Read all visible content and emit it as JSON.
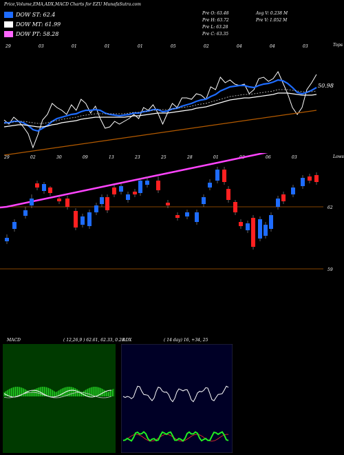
{
  "header": {
    "title": "Price,Volume,EMA,ADX,MACD Charts for EZU MunafaSutra.com",
    "stats_left": [
      "Pre  O: 63.48",
      "Pre  H: 63.72",
      "Pre  L: 63.28",
      "Pre  C: 63.35"
    ],
    "stats_right": [
      "Avg V: 0.238  M",
      "Pre  V: 1.052  M"
    ]
  },
  "legend": [
    {
      "label": "DOW ST: 62.4",
      "color": "#1e6cff"
    },
    {
      "label": "DOW MT: 61.99",
      "color": "#ffffff"
    },
    {
      "label": "DOW PT: 58.28",
      "color": "#ff66ff"
    }
  ],
  "chart_data": [
    {
      "type": "line",
      "name": "price_ema_panel",
      "right_labels": [
        "Tops",
        "50.98"
      ],
      "top_date_labels": [
        "29",
        "03",
        "01",
        "01",
        "01",
        "05",
        "02",
        "04",
        "04",
        "03"
      ],
      "series": [
        {
          "name": "close",
          "color": "#ffffff",
          "values": [
            174,
            180,
            170,
            176,
            184,
            194,
            214,
            196,
            174,
            166,
            150,
            156,
            160,
            166,
            152,
            160,
            144,
            150,
            164,
            154,
            172,
            186,
            184,
            176,
            180,
            176,
            172,
            166,
            172,
            156,
            160,
            152,
            164,
            180,
            164,
            150,
            156,
            142,
            142,
            144,
            136,
            138,
            144,
            126,
            130,
            112,
            120,
            116,
            122,
            124,
            122,
            136,
            130,
            114,
            112,
            118,
            114,
            104,
            120,
            136,
            156,
            166,
            156,
            130,
            120,
            108
          ]
        },
        {
          "name": "ema_short",
          "color": "#1e6cff",
          "values": [
            178,
            178,
            176,
            176,
            178,
            182,
            188,
            190,
            186,
            182,
            176,
            172,
            170,
            168,
            166,
            165,
            162,
            160,
            160,
            159,
            160,
            164,
            166,
            167,
            168,
            167,
            166,
            164,
            164,
            162,
            161,
            159,
            159,
            162,
            161,
            158,
            157,
            154,
            152,
            150,
            147,
            145,
            144,
            140,
            137,
            132,
            129,
            126,
            125,
            124,
            124,
            126,
            127,
            124,
            122,
            121,
            119,
            116,
            117,
            121,
            127,
            134,
            136,
            134,
            131,
            127
          ]
        },
        {
          "name": "ema_mid",
          "color": "#ffffff",
          "values": [
            184,
            183,
            182,
            181,
            181,
            182,
            183,
            184,
            184,
            183,
            181,
            180,
            178,
            177,
            176,
            175,
            173,
            172,
            171,
            170,
            170,
            170,
            170,
            170,
            170,
            170,
            169,
            168,
            168,
            167,
            166,
            165,
            164,
            164,
            164,
            163,
            162,
            161,
            160,
            159,
            157,
            156,
            155,
            153,
            151,
            149,
            147,
            145,
            144,
            143,
            142,
            142,
            141,
            140,
            139,
            138,
            137,
            135,
            135,
            135,
            136,
            137,
            138,
            138,
            138,
            137
          ]
        },
        {
          "name": "ema_long",
          "color": "#b35a00",
          "values": [
            225,
            224,
            223,
            222,
            221,
            220,
            219,
            218,
            217,
            216,
            215,
            214,
            213,
            212,
            211,
            210,
            209,
            208,
            207,
            206,
            205,
            204,
            203,
            202,
            201,
            200,
            199,
            198,
            197,
            196,
            195,
            194,
            193,
            192,
            191,
            190,
            189,
            188,
            187,
            186,
            185,
            184,
            183,
            182,
            181,
            180,
            179,
            178,
            177,
            176,
            175,
            174,
            173,
            172,
            171,
            170,
            169,
            168,
            167,
            166,
            165,
            164,
            163,
            162,
            161,
            160
          ]
        }
      ]
    },
    {
      "type": "bar",
      "name": "candlestick_panel",
      "right_labels": [
        "Lows",
        "62",
        "59"
      ],
      "top_date_labels": [
        "29",
        "02",
        "30",
        "09",
        "13",
        "23",
        "25",
        "28",
        "01",
        "03",
        "06",
        "03"
      ],
      "series": [
        {
          "name": "dow_pt_line",
          "color": "#ff44ff",
          "values": [
            301,
            300,
            298,
            296,
            294,
            292,
            290,
            288,
            286,
            284,
            282,
            280,
            278,
            276,
            274,
            272,
            270,
            268,
            266,
            264,
            262,
            260,
            258,
            256,
            254,
            252,
            250,
            248,
            246,
            244,
            242,
            240,
            238,
            236,
            234,
            232,
            230,
            228,
            226,
            224,
            222,
            220,
            218,
            216,
            214,
            212,
            210,
            208,
            206
          ]
        }
      ]
    },
    {
      "type": "line",
      "name": "macd_panel",
      "title": "MACD",
      "params": "( 12,26,9 ) 62.61,  62.33,  0.28"
    },
    {
      "type": "line",
      "name": "adx_panel",
      "title": "ADX",
      "params": "( 14  day) 16,  +34,  25"
    }
  ]
}
